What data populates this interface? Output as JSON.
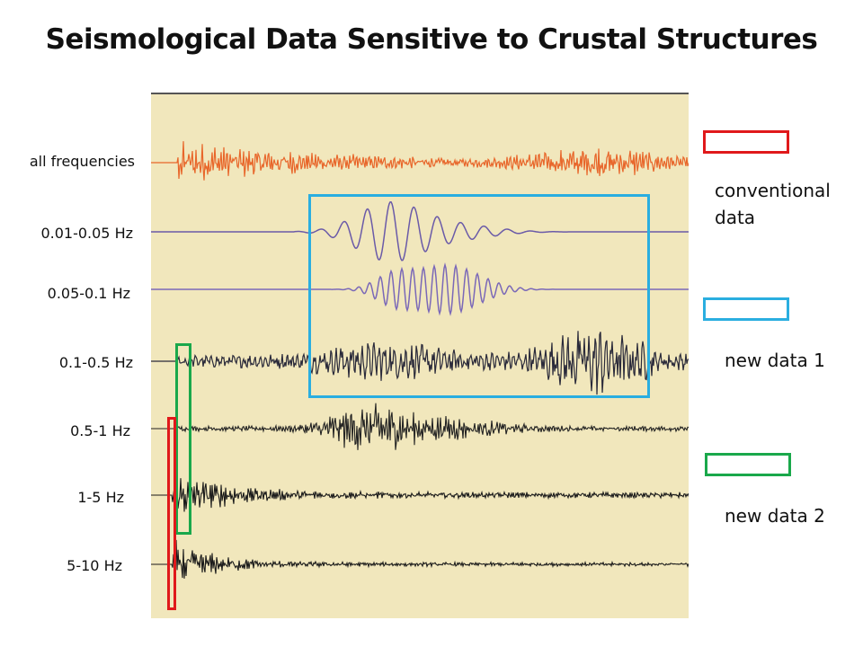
{
  "title": "Seismological Data Sensitive to Crustal Structures",
  "bands": [
    {
      "label": "all frequencies",
      "color": "#e8662a"
    },
    {
      "label": "0.01-0.05 Hz",
      "color": "#6a5aa8"
    },
    {
      "label": "0.05-0.1 Hz",
      "color": "#7a68b8"
    },
    {
      "label": "0.1-0.5 Hz",
      "color": "#2a2a3a"
    },
    {
      "label": "0.5-1 Hz",
      "color": "#222222"
    },
    {
      "label": "1-5 Hz",
      "color": "#1a1a1a"
    },
    {
      "label": "5-10 Hz",
      "color": "#1a1a1a"
    }
  ],
  "legend": {
    "conventional": {
      "label_line1": "conventional",
      "label_line2": "data",
      "color": "#e0191b"
    },
    "new1": {
      "label": "new data 1",
      "color": "#2aaee0"
    },
    "new2": {
      "label": "new data 2",
      "color": "#1aa84b"
    }
  }
}
